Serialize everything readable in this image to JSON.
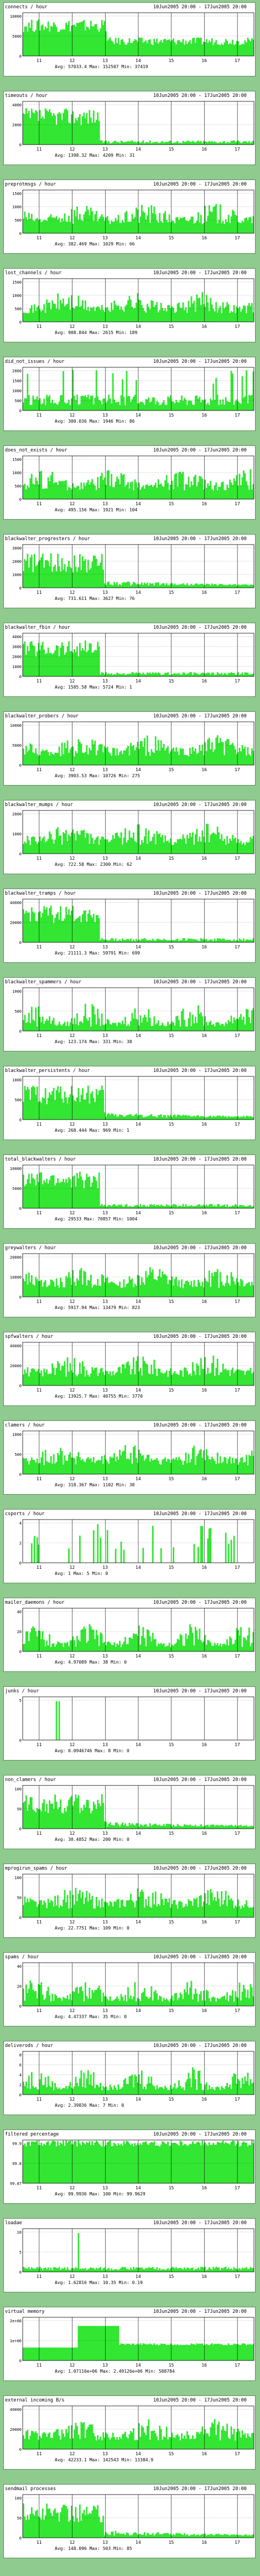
{
  "colors": {
    "fill": "#32e632",
    "bg": "#ffffff",
    "grid": "#000000",
    "page_bg": "#8fca8f"
  },
  "date_range": "10Jun2005 20:00 - 17Jun2005 20:00",
  "x_ticks": [
    "11",
    "12",
    "13",
    "14",
    "15",
    "16",
    "17"
  ],
  "chart_data": [
    {
      "type": "area",
      "title": "connects / hour",
      "yticks": [
        "10000",
        "5000",
        "0"
      ],
      "ylim": [
        0,
        20000
      ],
      "stats": {
        "avg": "Avg: 57033.4",
        "max": "Max: 152507",
        "min": "Min: 37419"
      },
      "profile": "high-then-mid"
    },
    {
      "type": "area",
      "title": "timeouts / hour",
      "yticks": [
        "4000",
        "2000",
        "0"
      ],
      "ylim": [
        0,
        5000
      ],
      "stats": {
        "avg": "Avg: 1398.32",
        "max": "Max: 4209",
        "min": "Min: 31"
      },
      "profile": "high-first"
    },
    {
      "type": "area",
      "title": "preprotmsgs / hour",
      "yticks": [
        "1500",
        "1000",
        "500",
        "0"
      ],
      "ylim": [
        0,
        2000
      ],
      "stats": {
        "avg": "Avg: 382.469",
        "max": "Max: 1029",
        "min": "Min: 66"
      },
      "profile": "wavy"
    },
    {
      "type": "area",
      "title": "lost_channels / hour",
      "yticks": [
        "1500",
        "1000",
        "500",
        "0"
      ],
      "ylim": [
        0,
        2000
      ],
      "stats": {
        "avg": "Avg: 908.844",
        "max": "Max: 2615",
        "min": "Min: 189"
      },
      "profile": "wavy"
    },
    {
      "type": "area",
      "title": "did_not_issues / hour",
      "yticks": [
        "2000",
        "1500",
        "1000",
        "500",
        "0"
      ],
      "ylim": [
        0,
        2500
      ],
      "stats": {
        "avg": "Avg: 300.036",
        "max": "Max: 1946",
        "min": "Min: 86"
      },
      "profile": "spiky"
    },
    {
      "type": "area",
      "title": "does_not_exists / hour",
      "yticks": [
        "1500",
        "1000",
        "500",
        "0"
      ],
      "ylim": [
        0,
        2000
      ],
      "stats": {
        "avg": "Avg: 495.156",
        "max": "Max: 1921",
        "min": "Min: 104"
      },
      "profile": "wavy"
    },
    {
      "type": "area",
      "title": "blackwalter_progresters / hour",
      "yticks": [
        "3000",
        "2000",
        "1000",
        "0"
      ],
      "ylim": [
        0,
        4000
      ],
      "stats": {
        "avg": "Avg: 731.611",
        "max": "Max: 3627",
        "min": "Min: 76"
      },
      "profile": "decay"
    },
    {
      "type": "area",
      "title": "blackwalter_fbin / hour",
      "yticks": [
        "4000",
        "3000",
        "2000",
        "1000",
        "0"
      ],
      "ylim": [
        0,
        5000
      ],
      "stats": {
        "avg": "Avg: 1585.58",
        "max": "Max: 5724",
        "min": "Min: 1"
      },
      "profile": "high-first"
    },
    {
      "type": "area",
      "title": "blackwalter_probers / hour",
      "yticks": [
        "10000",
        "5000",
        "0"
      ],
      "ylim": [
        0,
        15000
      ],
      "stats": {
        "avg": "Avg: 3903.53",
        "max": "Max: 10726",
        "min": "Min: 275"
      },
      "profile": "wavy"
    },
    {
      "type": "area",
      "title": "blackwalter_mumps / hour",
      "yticks": [
        "2000",
        "1000",
        "0"
      ],
      "ylim": [
        0,
        3000
      ],
      "stats": {
        "avg": "Avg: 722.58",
        "max": "Max: 2300",
        "min": "Min: 62"
      },
      "profile": "wavy"
    },
    {
      "type": "area",
      "title": "blackwalter_tramps / hour",
      "yticks": [
        "40000",
        "20000",
        "0"
      ],
      "ylim": [
        0,
        60000
      ],
      "stats": {
        "avg": "Avg: 21111.3",
        "max": "Max: 59791",
        "min": "Min: 699"
      },
      "profile": "high-first"
    },
    {
      "type": "area",
      "title": "blackwalter_spammers / hour",
      "yticks": [
        "1000",
        "500",
        "0"
      ],
      "ylim": [
        0,
        1200
      ],
      "stats": {
        "avg": "Avg: 123.174",
        "max": "Max: 331",
        "min": "Min: 38"
      },
      "profile": "noisy"
    },
    {
      "type": "area",
      "title": "blackwalter_persistents / hour",
      "yticks": [
        "1000",
        "500",
        "0"
      ],
      "ylim": [
        0,
        1200
      ],
      "stats": {
        "avg": "Avg: 268.444",
        "max": "Max: 969",
        "min": "Min: 1"
      },
      "profile": "decay"
    },
    {
      "type": "area",
      "title": "total_blackwalters / hour",
      "yticks": [
        "10000",
        "5000",
        "0"
      ],
      "ylim": [
        0,
        15000
      ],
      "stats": {
        "avg": "Avg: 29533",
        "max": "Max: 70857",
        "min": "Min: 1004"
      },
      "profile": "high-first"
    },
    {
      "type": "area",
      "title": "greywalters / hour",
      "yticks": [
        "20000",
        "10000",
        "0"
      ],
      "ylim": [
        0,
        25000
      ],
      "stats": {
        "avg": "Avg: 5917.94",
        "max": "Max: 13479",
        "min": "Min: 823"
      },
      "profile": "wavy"
    },
    {
      "type": "area",
      "title": "spfwalters / hour",
      "yticks": [
        "40000",
        "20000",
        "0"
      ],
      "ylim": [
        0,
        50000
      ],
      "stats": {
        "avg": "Avg: 13925.7",
        "max": "Max: 40755",
        "min": "Min: 3770"
      },
      "profile": "wavy"
    },
    {
      "type": "area",
      "title": "clamers / hour",
      "yticks": [
        "1000",
        "500",
        "0"
      ],
      "ylim": [
        0,
        1200
      ],
      "stats": {
        "avg": "Avg: 318.367",
        "max": "Max: 1102",
        "min": "Min: 38"
      },
      "profile": "wavy"
    },
    {
      "type": "area",
      "title": "csports / hour",
      "yticks": [
        "4",
        "2",
        "0"
      ],
      "ylim": [
        0,
        5
      ],
      "stats": {
        "avg": "Avg: 1",
        "max": "Max: 5",
        "min": "Min: 0"
      },
      "profile": "sparse"
    },
    {
      "type": "area",
      "title": "mailer_daemons / hour",
      "yticks": [
        "40",
        "20",
        "0"
      ],
      "ylim": [
        0,
        50
      ],
      "stats": {
        "avg": "Avg: 4.97089",
        "max": "Max: 38",
        "min": "Min: 0"
      },
      "profile": "noisy"
    },
    {
      "type": "area",
      "title": "junks / hour",
      "yticks": [
        "5",
        "0"
      ],
      "ylim": [
        0,
        8
      ],
      "stats": {
        "avg": "Avg: 0.0946746",
        "max": "Max: 8",
        "min": "Min: 0"
      },
      "profile": "rare"
    },
    {
      "type": "area",
      "title": "non_clamers / hour",
      "yticks": [
        "100",
        "50",
        "0"
      ],
      "ylim": [
        0,
        150
      ],
      "stats": {
        "avg": "Avg: 30.4852",
        "max": "Max: 200",
        "min": "Min: 0"
      },
      "profile": "decay"
    },
    {
      "type": "area",
      "title": "mprogirun_spams / hour",
      "yticks": [
        "100",
        "50",
        "0"
      ],
      "ylim": [
        0,
        150
      ],
      "stats": {
        "avg": "Avg: 22.7751",
        "max": "Max: 109",
        "min": "Min: 0"
      },
      "profile": "wavy"
    },
    {
      "type": "area",
      "title": "spams / hour",
      "yticks": [
        "40",
        "20",
        "0"
      ],
      "ylim": [
        0,
        50
      ],
      "stats": {
        "avg": "Avg: 4.47337",
        "max": "Max: 35",
        "min": "Min: 0"
      },
      "profile": "noisy"
    },
    {
      "type": "area",
      "title": "deliverods / hour",
      "yticks": [
        "8",
        "6",
        "4",
        "2",
        "0"
      ],
      "ylim": [
        0,
        9
      ],
      "stats": {
        "avg": "Avg: 2.39836",
        "max": "Max: 7",
        "min": "Min: 0"
      },
      "profile": "noisy"
    },
    {
      "type": "area",
      "title": "filtered percentage",
      "yticks": [
        "99.9",
        "99.8",
        "99.87"
      ],
      "ylim": [
        99.8,
        100
      ],
      "stats": {
        "avg": "Avg: 99.9936",
        "max": "Max: 100",
        "min": "Min: 99.9629"
      },
      "profile": "full"
    },
    {
      "type": "area",
      "title": "loadae",
      "yticks": [
        "10",
        "5",
        "0"
      ],
      "ylim": [
        0,
        12
      ],
      "stats": {
        "avg": "Avg: 1.62816",
        "max": "Max: 10.35",
        "min": "Min: 0.19"
      },
      "profile": "low-spike"
    },
    {
      "type": "area",
      "title": "virtual memory",
      "yticks": [
        "2e+06",
        "1e+06",
        "0"
      ],
      "ylim": [
        0,
        2500000
      ],
      "stats": {
        "avg": "Avg: 1.07116e+06",
        "max": "Max: 2.49126e+06",
        "min": "Min: 588784"
      },
      "profile": "steps"
    },
    {
      "type": "area",
      "title": "external incoming B/s",
      "yticks": [
        "40000",
        "20000",
        "0"
      ],
      "ylim": [
        0,
        50000
      ],
      "stats": {
        "avg": "Avg: 42233.1",
        "max": "Max: 142543",
        "min": "Min: 13384.9"
      },
      "profile": "wavy"
    },
    {
      "type": "area",
      "title": "sendmail processes",
      "yticks": [
        "100",
        "50",
        "0"
      ],
      "ylim": [
        0,
        150
      ],
      "stats": {
        "avg": "Avg: 148.096",
        "max": "Max: 503",
        "min": "Min: 85"
      },
      "profile": "decay"
    }
  ]
}
